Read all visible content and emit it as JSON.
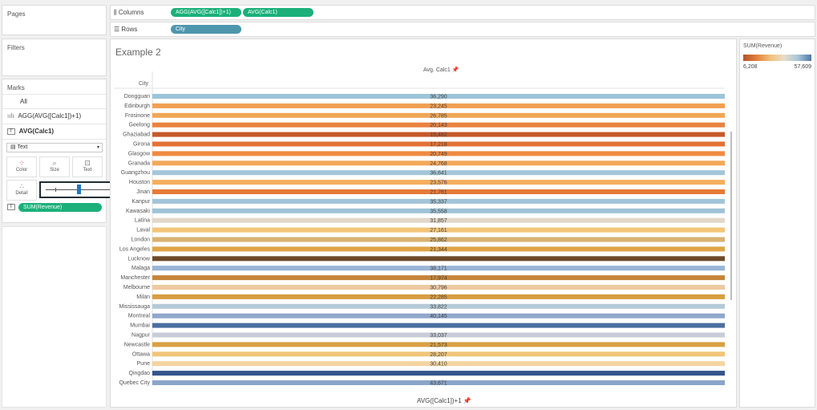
{
  "left_panels": {
    "pages": "Pages",
    "filters": "Filters",
    "marks": "Marks"
  },
  "marks": {
    "all": "All",
    "agg_label": "AGG(AVG([Calc1])+1)",
    "avg_label": "AVG(Calc1)",
    "mark_type": "Text",
    "buttons": {
      "color": "Color",
      "size": "Size",
      "text": "Text",
      "detail": "Detail"
    },
    "color_pill": "SUM(Revenue)"
  },
  "shelves": {
    "columns_label": "Columns",
    "columns_pills": [
      "AGG(AVG([Calc1])+1)",
      "AVG(Calc1)"
    ],
    "rows_label": "Rows",
    "rows_pill": "City"
  },
  "view": {
    "sheet_title": "Example 2",
    "column_header": "Avg. Calc1",
    "row_header": "City",
    "x_axis_title": "AVG([Calc1])+1"
  },
  "legend": {
    "title": "SUM(Revenue)",
    "min": "6,208",
    "max": "57,609"
  },
  "colors": {
    "pill_green": "#1bb07a",
    "pill_blue": "#4e96ad"
  },
  "chart_data": {
    "type": "bar",
    "categories": [
      "Dongguan",
      "Edinburgh",
      "Frosinone",
      "Geelong",
      "Ghaziabad",
      "Girona",
      "Glasgow",
      "Granada",
      "Guangzhou",
      "Houston",
      "Jinan",
      "Kanpur",
      "Kawasaki",
      "Latina",
      "Laval",
      "London",
      "Los Angeles",
      "Lucknow",
      "Malaga",
      "Manchester",
      "Melbourne",
      "Milan",
      "Mississauga",
      "Montreal",
      "Mumbai",
      "Nagpur",
      "Newcastle",
      "Ottawa",
      "Pune",
      "Qingdao",
      "Quebec City"
    ],
    "labels": [
      "36,290",
      "23,245",
      "26,785",
      "20,143",
      "15,482",
      "17,218",
      "20,749",
      "24,768",
      "36,641",
      "23,576",
      "21,761",
      "35,337",
      "35,558",
      "31,857",
      "27,161",
      "25,862",
      "21,344",
      "",
      "38,171",
      "17,974",
      "30,796",
      "22,285",
      "33,822",
      "40,145",
      "",
      "33,037",
      "21,573",
      "28,207",
      "30,410",
      "",
      "43,671"
    ],
    "bar_colors": [
      "#9dc4d8",
      "#f2a052",
      "#f0a656",
      "#e9823f",
      "#c55a2a",
      "#e37135",
      "#f08a42",
      "#f4a85a",
      "#a3c6d8",
      "#f4ae5e",
      "#e77a38",
      "#a2c4d8",
      "#9fc3d7",
      "#e2d7c8",
      "#f2c57a",
      "#d9b270",
      "#e0a447",
      "#6e4a2a",
      "#9ab5d6",
      "#c5853a",
      "#eec9a0",
      "#d89d42",
      "#b4cad8",
      "#8fa7cb",
      "#4b6ea0",
      "#c8ccd8",
      "#d8a043",
      "#f1c57a",
      "#f4d4a0",
      "#34558a",
      "#8aa5c8"
    ],
    "value_axis_label": "AVG([Calc1])+1"
  }
}
